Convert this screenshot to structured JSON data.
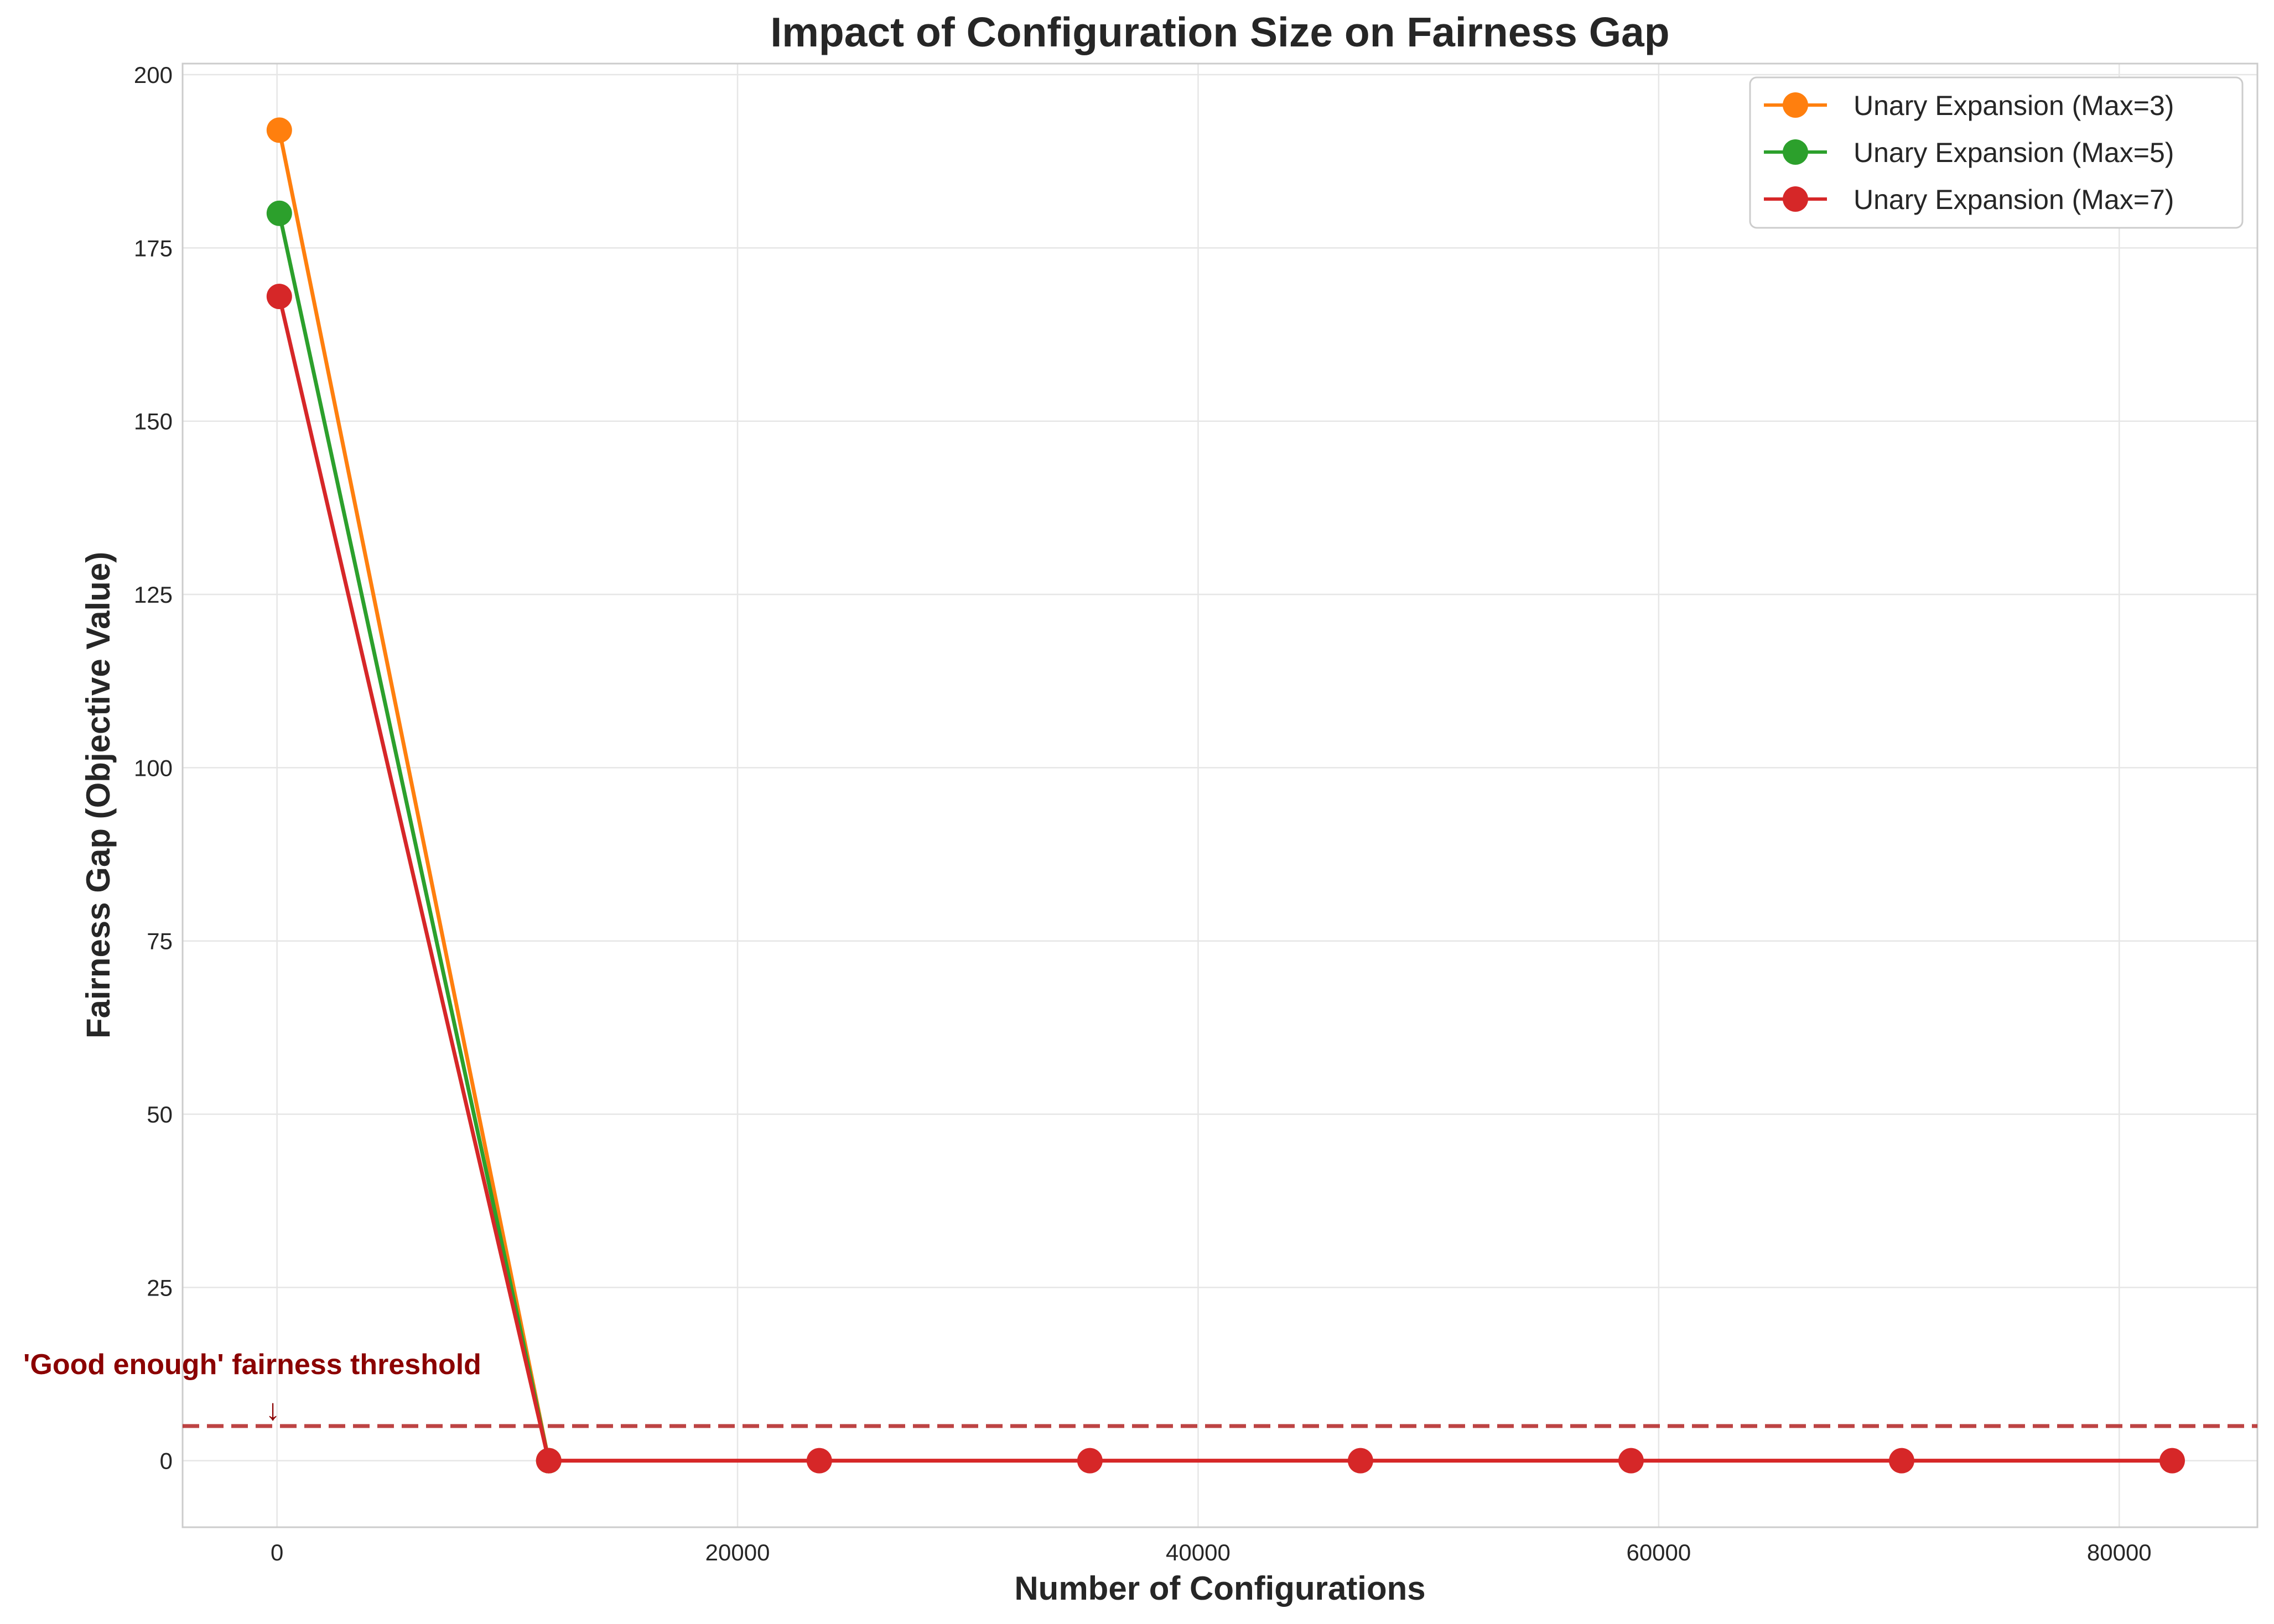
{
  "chart_data": {
    "type": "line",
    "title": "Impact of Configuration Size on Fairness Gap",
    "xlabel": "Number of Configurations",
    "ylabel": "Fairness Gap (Objective Value)",
    "xlim": [
      -4100,
      86000
    ],
    "ylim": [
      -9.6,
      201.6
    ],
    "x_ticks": [
      0,
      20000,
      40000,
      60000,
      80000
    ],
    "y_ticks": [
      0,
      25,
      50,
      75,
      100,
      125,
      150,
      175,
      200
    ],
    "grid": true,
    "legend_position": "top-right",
    "series": [
      {
        "name": "Unary Expansion (Max=3)",
        "color": "#ff7f0e",
        "x": [
          100,
          11800
        ],
        "y": [
          192,
          0
        ]
      },
      {
        "name": "Unary Expansion (Max=5)",
        "color": "#2ca02c",
        "x": [
          100,
          11800
        ],
        "y": [
          180,
          0
        ]
      },
      {
        "name": "Unary Expansion (Max=7)",
        "color": "#d62728",
        "x": [
          100,
          11800,
          23550,
          35300,
          47050,
          58800,
          70550,
          82300
        ],
        "y": [
          168,
          0,
          0,
          0,
          0,
          0,
          0,
          0
        ]
      }
    ],
    "threshold": {
      "y": 5,
      "color": "#b22222",
      "style": "dashed"
    },
    "annotation": {
      "text": "'Good enough' fairness threshold",
      "color": "#8b0000",
      "arrow": "↓",
      "x": 0
    }
  }
}
